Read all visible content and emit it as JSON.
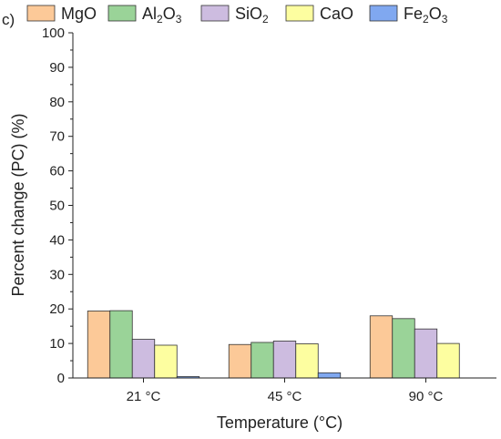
{
  "panel_label": "c)",
  "chart_data": {
    "type": "bar",
    "title": "",
    "xlabel": "Temperature (°C)",
    "ylabel": "Percent change (PC) (%)",
    "ylim": [
      0,
      100
    ],
    "yticks": [
      0,
      10,
      20,
      30,
      40,
      50,
      60,
      70,
      80,
      90,
      100
    ],
    "grid": false,
    "legend_position": "top",
    "categories": [
      "21 °C",
      "45 °C",
      "90 °C"
    ],
    "series": [
      {
        "name": "MgO",
        "label": {
          "base": "MgO",
          "parts": []
        },
        "color": "#FCC998",
        "values": [
          19.4,
          9.7,
          18.0
        ]
      },
      {
        "name": "Al2O3",
        "label": {
          "base": "Al",
          "parts": [
            {
              "sub": "2"
            },
            {
              "text": "O"
            },
            {
              "sub": "3"
            }
          ]
        },
        "color": "#9AD398",
        "values": [
          19.5,
          10.3,
          17.2
        ]
      },
      {
        "name": "SiO2",
        "label": {
          "base": "SiO",
          "parts": [
            {
              "sub": "2"
            }
          ]
        },
        "color": "#CDBCE0",
        "values": [
          11.2,
          10.7,
          14.2
        ]
      },
      {
        "name": "CaO",
        "label": {
          "base": "CaO",
          "parts": []
        },
        "color": "#FDFEA0",
        "values": [
          9.5,
          9.9,
          10.0
        ]
      },
      {
        "name": "Fe2O3",
        "label": {
          "base": "Fe",
          "parts": [
            {
              "sub": "2"
            },
            {
              "text": "O"
            },
            {
              "sub": "3"
            }
          ]
        },
        "color": "#80A8F0",
        "values": [
          0.4,
          1.5,
          0.0
        ]
      }
    ]
  }
}
